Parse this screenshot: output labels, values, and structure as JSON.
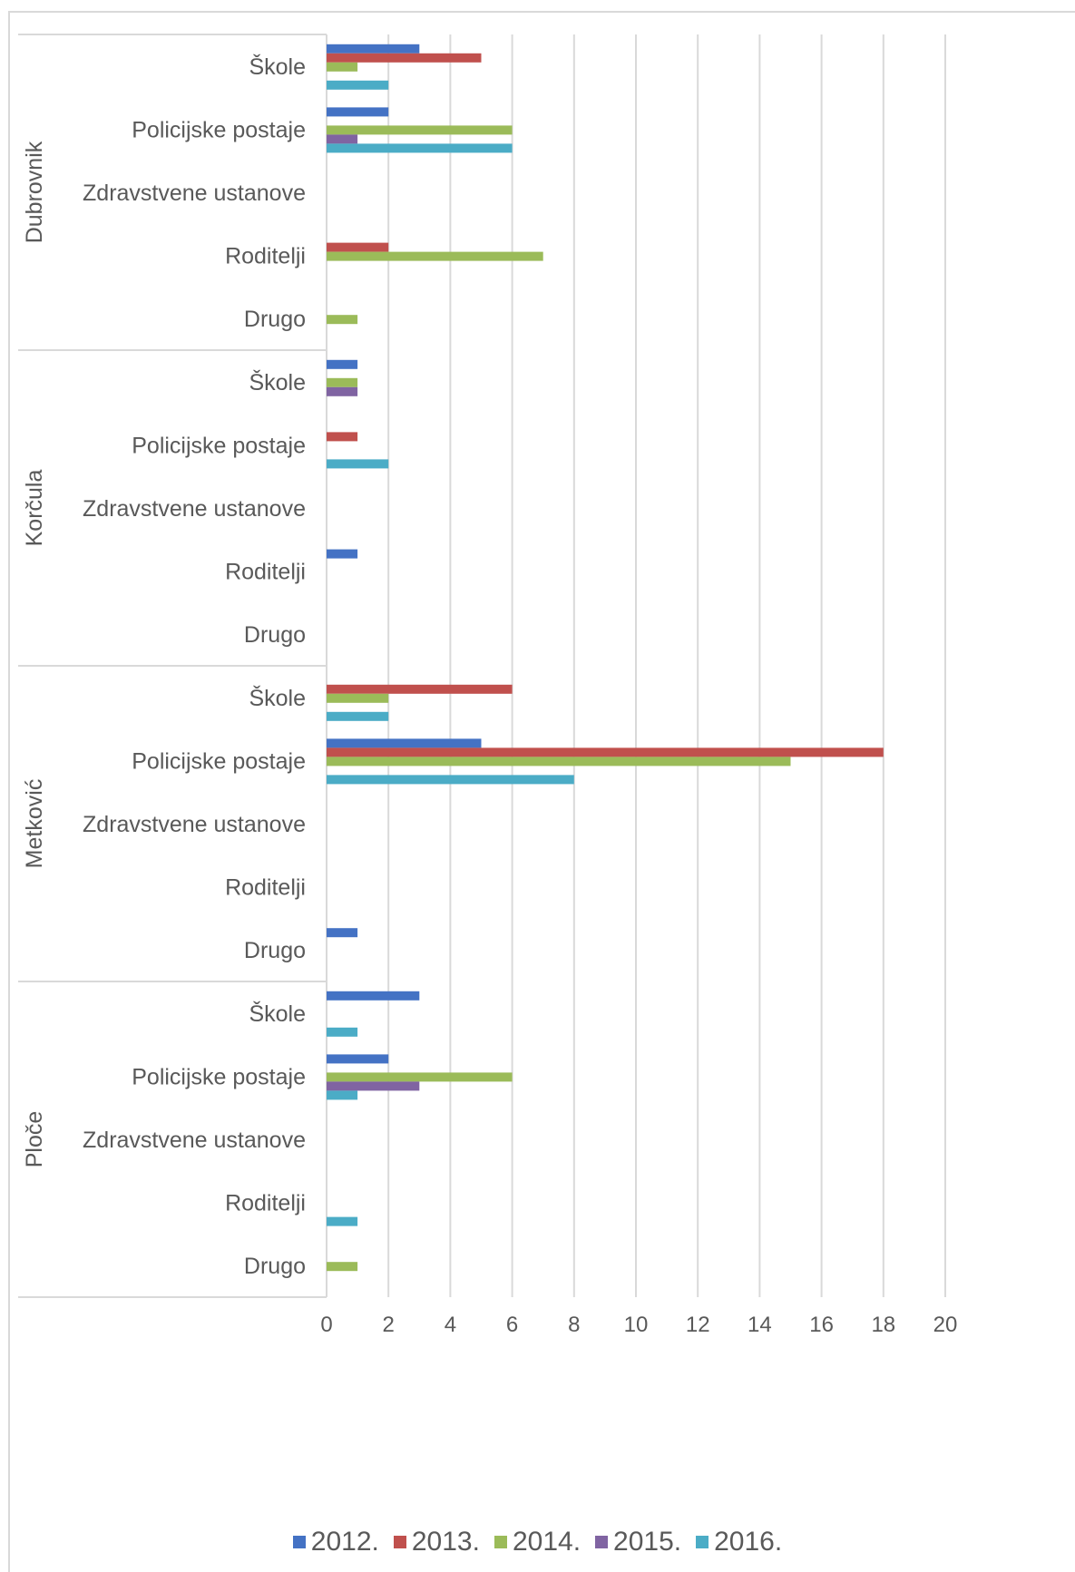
{
  "chart_data": {
    "type": "bar",
    "orientation": "horizontal",
    "groups": [
      "Dubrovnik",
      "Korčula",
      "Metković",
      "Ploče"
    ],
    "categories": [
      "Škole",
      "Policijske postaje",
      "Zdravstvene ustanove",
      "Roditelji",
      "Drugo"
    ],
    "series": [
      {
        "name": "2012.",
        "color": "#4472c4",
        "values": [
          [
            3,
            2,
            0,
            0,
            0
          ],
          [
            1,
            0,
            0,
            1,
            0
          ],
          [
            0,
            5,
            0,
            0,
            1
          ],
          [
            3,
            2,
            0,
            0,
            0
          ]
        ]
      },
      {
        "name": "2013.",
        "color": "#c0504d",
        "values": [
          [
            5,
            0,
            0,
            2,
            0
          ],
          [
            0,
            1,
            0,
            0,
            0
          ],
          [
            6,
            18,
            0,
            0,
            0
          ],
          [
            0,
            0,
            0,
            0,
            0
          ]
        ]
      },
      {
        "name": "2014.",
        "color": "#9bbb59",
        "values": [
          [
            1,
            6,
            0,
            7,
            1
          ],
          [
            1,
            0,
            0,
            0,
            0
          ],
          [
            2,
            15,
            0,
            0,
            0
          ],
          [
            0,
            6,
            0,
            0,
            1
          ]
        ]
      },
      {
        "name": "2015.",
        "color": "#8064a2",
        "values": [
          [
            0,
            1,
            0,
            0,
            0
          ],
          [
            1,
            0,
            0,
            0,
            0
          ],
          [
            0,
            0,
            0,
            0,
            0
          ],
          [
            0,
            3,
            0,
            0,
            0
          ]
        ]
      },
      {
        "name": "2016.",
        "color": "#4bacc6",
        "values": [
          [
            2,
            6,
            0,
            0,
            0
          ],
          [
            0,
            2,
            0,
            0,
            0
          ],
          [
            2,
            8,
            0,
            0,
            0
          ],
          [
            1,
            1,
            0,
            1,
            0
          ]
        ]
      }
    ],
    "xlim": [
      0,
      20
    ],
    "xticks": [
      "0",
      "2",
      "4",
      "6",
      "8",
      "10",
      "12",
      "14",
      "16",
      "18",
      "20"
    ],
    "grid": true,
    "legend_position": "bottom"
  }
}
